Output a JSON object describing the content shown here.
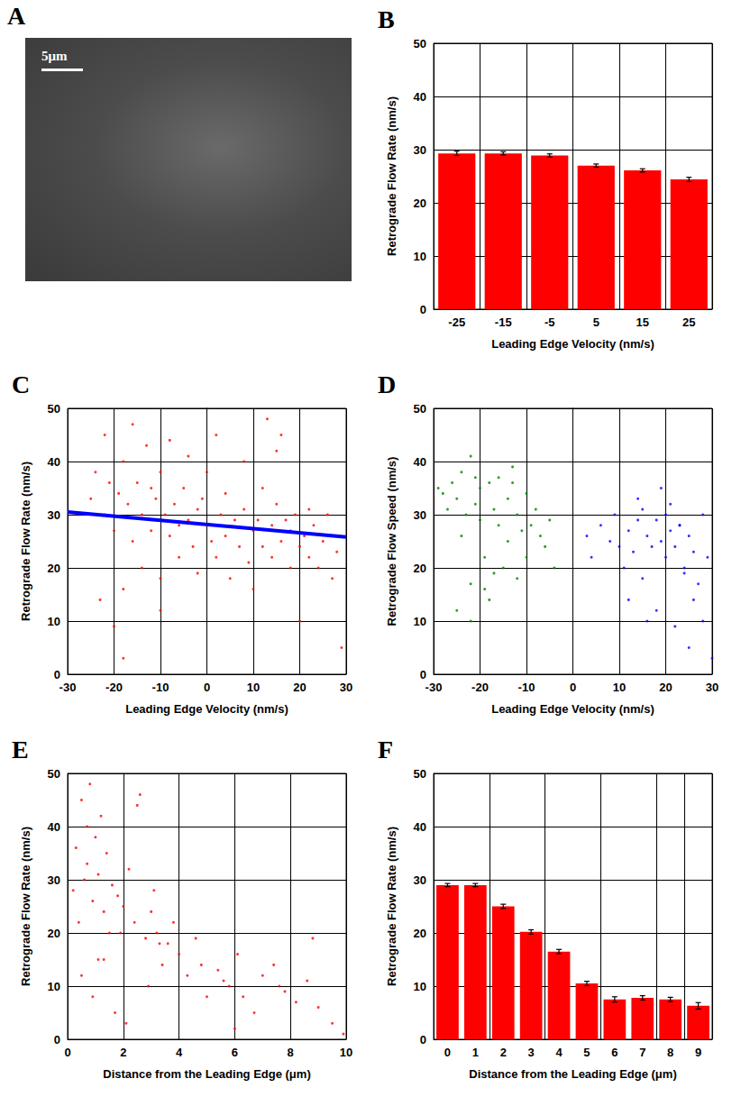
{
  "chart_data": [
    {
      "panel": "A",
      "type": "image",
      "annotations": [
        "5μm"
      ]
    },
    {
      "panel": "B",
      "type": "bar",
      "xlabel": "Leading Edge Velocity (nm/s)",
      "ylabel": "Retrograde Flow Rate (nm/s)",
      "categories": [
        "-25",
        "-15",
        "-5",
        "5",
        "15",
        "25"
      ],
      "values": [
        29.3,
        29.3,
        28.9,
        27.0,
        26.1,
        24.4
      ],
      "errors": [
        0.4,
        0.3,
        0.3,
        0.3,
        0.3,
        0.4
      ],
      "color": "#ff0000",
      "ylim": [
        0,
        50
      ],
      "yticks": [
        0,
        10,
        20,
        30,
        40,
        50
      ],
      "grid": true
    },
    {
      "panel": "C",
      "type": "scatter",
      "xlabel": "Leading Edge Velocity (nm/s)",
      "ylabel": "Retrograde Flow Rate (nm/s)",
      "xlim": [
        -30,
        30
      ],
      "xticks": [
        -30,
        -20,
        -10,
        0,
        10,
        20,
        30
      ],
      "ylim": [
        0,
        50
      ],
      "yticks": [
        0,
        10,
        20,
        30,
        40,
        50
      ],
      "grid": true,
      "series": [
        {
          "type": "scatter",
          "color": "#ff0000",
          "x": [
            -25,
            -24,
            -23,
            -22,
            -22,
            -21,
            -20,
            -20,
            -19,
            -18,
            -18,
            -17,
            -16,
            -16,
            -15,
            -14,
            -14,
            -13,
            -12,
            -12,
            -11,
            -10,
            -10,
            -9,
            -8,
            -8,
            -7,
            -6,
            -6,
            -5,
            -4,
            -4,
            -3,
            -2,
            -2,
            -1,
            0,
            0,
            1,
            2,
            2,
            3,
            4,
            4,
            5,
            6,
            7,
            8,
            8,
            9,
            10,
            10,
            11,
            12,
            12,
            13,
            14,
            14,
            15,
            16,
            16,
            17,
            18,
            18,
            19,
            20,
            20,
            21,
            22,
            22,
            23,
            24,
            25,
            26,
            27,
            28,
            29,
            -18,
            -10,
            15
          ],
          "values": [
            33,
            38,
            14,
            30,
            45,
            36,
            27,
            9,
            34,
            40,
            3,
            32,
            25,
            47,
            36,
            20,
            30,
            43,
            35,
            27,
            33,
            38,
            18,
            30,
            44,
            26,
            32,
            28,
            22,
            35,
            41,
            29,
            24,
            31,
            19,
            33,
            28,
            38,
            25,
            22,
            45,
            30,
            26,
            34,
            18,
            29,
            24,
            31,
            40,
            21,
            27,
            16,
            29,
            35,
            24,
            48,
            22,
            28,
            32,
            25,
            45,
            29,
            20,
            27,
            30,
            24,
            10,
            26,
            31,
            22,
            28,
            20,
            25,
            30,
            18,
            23,
            5,
            16,
            12,
            42
          ]
        },
        {
          "type": "line",
          "color": "#0000ff",
          "x": [
            -30,
            30
          ],
          "values": [
            30.5,
            25.8
          ]
        }
      ]
    },
    {
      "panel": "D",
      "type": "scatter",
      "xlabel": "Leading Edge Velocity (nm/s)",
      "ylabel": "Retrograde Flow Speed (nm/s)",
      "xlim": [
        -30,
        30
      ],
      "xticks": [
        -30,
        -20,
        -10,
        0,
        10,
        20,
        30
      ],
      "ylim": [
        0,
        50
      ],
      "yticks": [
        0,
        10,
        20,
        30,
        40,
        50
      ],
      "grid": true,
      "series": [
        {
          "type": "scatter",
          "color": "#008000",
          "x": [
            -29,
            -28,
            -27,
            -26,
            -25,
            -24,
            -24,
            -23,
            -22,
            -22,
            -21,
            -20,
            -20,
            -19,
            -18,
            -18,
            -17,
            -16,
            -16,
            -15,
            -14,
            -14,
            -13,
            -12,
            -12,
            -11,
            -10,
            -10,
            -9,
            -8,
            -7,
            -6,
            -5,
            -4,
            -25,
            -22,
            -19,
            -13,
            -17,
            -21
          ],
          "values": [
            35,
            34,
            31,
            36,
            33,
            26,
            38,
            30,
            41,
            17,
            32,
            29,
            35,
            22,
            36,
            14,
            31,
            28,
            37,
            20,
            33,
            25,
            39,
            30,
            18,
            27,
            34,
            22,
            28,
            31,
            26,
            24,
            29,
            20,
            12,
            10,
            16,
            36,
            19,
            37
          ]
        },
        {
          "type": "scatter",
          "color": "#0000ff",
          "x": [
            3,
            4,
            6,
            8,
            9,
            10,
            11,
            12,
            13,
            14,
            15,
            15,
            16,
            17,
            18,
            18,
            19,
            20,
            20,
            21,
            22,
            22,
            23,
            24,
            25,
            25,
            26,
            27,
            28,
            29,
            12,
            14,
            16,
            19,
            21,
            23,
            26,
            28,
            30,
            24
          ],
          "values": [
            26,
            22,
            28,
            25,
            30,
            24,
            20,
            27,
            23,
            29,
            31,
            18,
            26,
            24,
            29,
            12,
            25,
            30,
            22,
            27,
            24,
            9,
            28,
            20,
            26,
            5,
            23,
            17,
            10,
            22,
            14,
            33,
            10,
            35,
            32,
            28,
            14,
            30,
            3,
            19
          ]
        }
      ]
    },
    {
      "panel": "E",
      "type": "scatter",
      "xlabel": "Distance from the Leading Edge (μm)",
      "ylabel": "Retrograde Flow Rate (nm/s)",
      "xlim": [
        0,
        10
      ],
      "xticks": [
        0,
        2,
        4,
        6,
        8,
        10
      ],
      "ylim": [
        0,
        50
      ],
      "yticks": [
        0,
        10,
        20,
        30,
        40,
        50
      ],
      "grid": true,
      "series": [
        {
          "type": "scatter",
          "color": "#ff0000",
          "x": [
            0.2,
            0.3,
            0.4,
            0.5,
            0.6,
            0.7,
            0.8,
            0.9,
            1.0,
            1.1,
            1.2,
            1.3,
            1.4,
            1.5,
            1.6,
            1.8,
            2.0,
            2.2,
            2.4,
            2.6,
            2.8,
            3.0,
            3.2,
            3.4,
            3.6,
            3.8,
            4.0,
            4.3,
            4.6,
            5.0,
            5.4,
            5.8,
            6.0,
            6.3,
            6.7,
            7.0,
            7.4,
            7.8,
            8.2,
            8.6,
            9.0,
            9.5,
            9.9,
            0.5,
            0.9,
            1.3,
            1.7,
            2.1,
            2.5,
            2.9,
            3.3,
            0.7,
            1.1,
            1.9,
            3.1,
            4.8,
            5.6,
            6.1,
            7.6,
            8.8
          ],
          "values": [
            28,
            36,
            22,
            45,
            30,
            33,
            48,
            26,
            38,
            31,
            42,
            24,
            35,
            20,
            29,
            27,
            25,
            32,
            22,
            46,
            19,
            24,
            20,
            14,
            18,
            22,
            16,
            12,
            19,
            8,
            13,
            10,
            2,
            8,
            5,
            12,
            14,
            9,
            7,
            11,
            6,
            3,
            1,
            12,
            8,
            15,
            5,
            3,
            44,
            10,
            18,
            40,
            15,
            20,
            28,
            14,
            11,
            16,
            10,
            19
          ]
        }
      ]
    },
    {
      "panel": "F",
      "type": "bar",
      "xlabel": "Distance from the Leading Edge (μm)",
      "ylabel": "Retrograde Flow Rate (nm/s)",
      "categories": [
        "0",
        "1",
        "2",
        "3",
        "4",
        "5",
        "6",
        "7",
        "8",
        "9"
      ],
      "values": [
        29.0,
        29.0,
        25.0,
        20.2,
        16.5,
        10.5,
        7.5,
        7.8,
        7.5,
        6.3
      ],
      "errors": [
        0.3,
        0.3,
        0.4,
        0.4,
        0.4,
        0.4,
        0.5,
        0.4,
        0.4,
        0.6
      ],
      "color": "#ff0000",
      "ylim": [
        0,
        50
      ],
      "yticks": [
        0,
        10,
        20,
        30,
        40,
        50
      ],
      "grid": true
    }
  ]
}
